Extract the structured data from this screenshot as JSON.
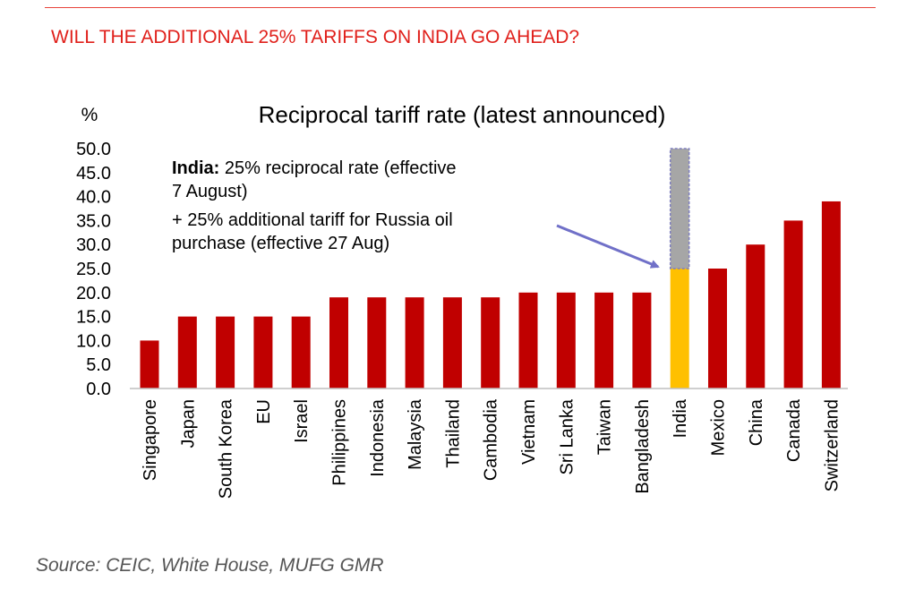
{
  "page": {
    "headline": "WILL THE ADDITIONAL 25% TARIFFS ON INDIA GO AHEAD?",
    "source": "Source: CEIC, White House, MUFG GMR",
    "colors": {
      "headline": "#e0201b",
      "rule": "#e8453c",
      "bar": "#c00000",
      "highlight": "#ffc000",
      "additional": "#a6a6a6",
      "additional_border": "#7f7fbf",
      "arrow": "#7070c8",
      "axis": "#bfbfbf"
    }
  },
  "chart_data": {
    "type": "bar",
    "title": "Reciprocal tariff rate (latest announced)",
    "ylabel": "%",
    "ylim": [
      0,
      50
    ],
    "yticks": [
      "0.0",
      "5.0",
      "10.0",
      "15.0",
      "20.0",
      "25.0",
      "30.0",
      "35.0",
      "40.0",
      "45.0",
      "50.0"
    ],
    "categories": [
      "Singapore",
      "Japan",
      "South Korea",
      "EU",
      "Israel",
      "Philippines",
      "Indonesia",
      "Malaysia",
      "Thailand",
      "Cambodia",
      "Vietnam",
      "Sri Lanka",
      "Taiwan",
      "Bangladesh",
      "India",
      "Mexico",
      "China",
      "Canada",
      "Switzerland"
    ],
    "values": [
      10,
      15,
      15,
      15,
      15,
      19,
      19,
      19,
      19,
      19,
      20,
      20,
      20,
      20,
      25,
      25,
      30,
      35,
      39
    ],
    "highlight": {
      "category": "India",
      "additional": 25
    },
    "annotation": {
      "bold": "India:",
      "line1": " 25% reciprocal rate (effective",
      "line2": "7 August)",
      "line3": "+ 25% additional tariff for Russia oil",
      "line4": "purchase (effective 27 Aug)"
    },
    "grid": false,
    "legend": "none"
  }
}
